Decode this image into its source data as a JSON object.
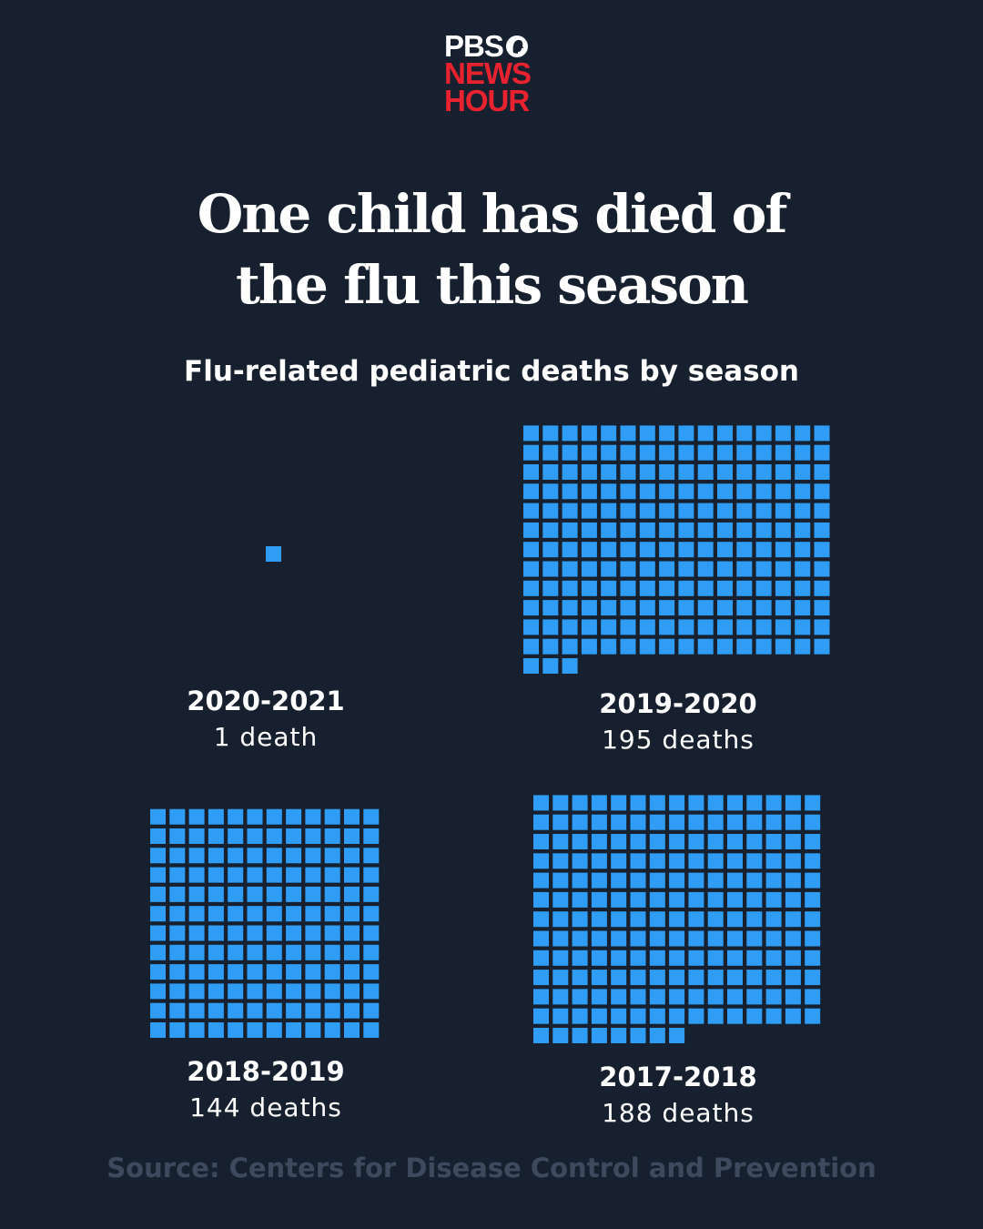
{
  "logo": {
    "line1": "PBS",
    "line2": "NEWS",
    "line3": "HOUR"
  },
  "title": {
    "line1": "One child has died of",
    "line2": "the flu this season"
  },
  "subtitle": "Flu-related pediatric deaths by season",
  "source": "Source: Centers for Disease Control and Prevention",
  "colors": {
    "background": "#17202e",
    "square": "#2f9df5",
    "logo_red": "#e8232f",
    "source_text": "#3d4a5e"
  },
  "chart_data": {
    "type": "waffle",
    "title": "Flu-related pediatric deaths by season",
    "unit": "1 square = 1 death",
    "series": [
      {
        "season": "2020-2021",
        "value": 1,
        "label": "1 death"
      },
      {
        "season": "2019-2020",
        "value": 195,
        "label": "195 deaths"
      },
      {
        "season": "2018-2019",
        "value": 144,
        "label": "144 deaths"
      },
      {
        "season": "2017-2018",
        "value": 188,
        "label": "188 deaths"
      }
    ]
  }
}
